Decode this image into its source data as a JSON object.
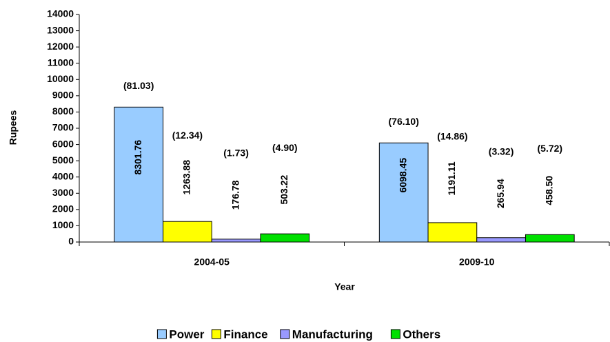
{
  "chart_data": {
    "type": "bar",
    "x_label": "Year",
    "y_label": "Rupees",
    "categories": [
      "2004-05",
      "2009-10"
    ],
    "series": [
      {
        "name": "Power",
        "color": "#99ccff",
        "values": [
          8301.76,
          6098.45
        ],
        "share_labels": [
          "(81.03)",
          "(76.10)"
        ]
      },
      {
        "name": "Finance",
        "color": "#ffff00",
        "values": [
          1263.88,
          1191.11
        ],
        "share_labels": [
          "(12.34)",
          "(14.86)"
        ]
      },
      {
        "name": "Manufacturing",
        "color": "#9999ff",
        "values": [
          176.78,
          265.94
        ],
        "share_labels": [
          "(1.73)",
          "(3.32)"
        ]
      },
      {
        "name": "Others",
        "color": "#00e000",
        "values": [
          503.22,
          458.5
        ],
        "value_labels": [
          "503.22",
          "458.50"
        ],
        "share_labels": [
          "(4.90)",
          "(5.72)"
        ]
      }
    ],
    "ylim": [
      0,
      14000
    ],
    "yticks": [
      0,
      1000,
      2000,
      3000,
      4000,
      5000,
      6000,
      7000,
      8000,
      9000,
      10000,
      11000,
      12000,
      13000,
      14000
    ],
    "legend": "bottom"
  }
}
